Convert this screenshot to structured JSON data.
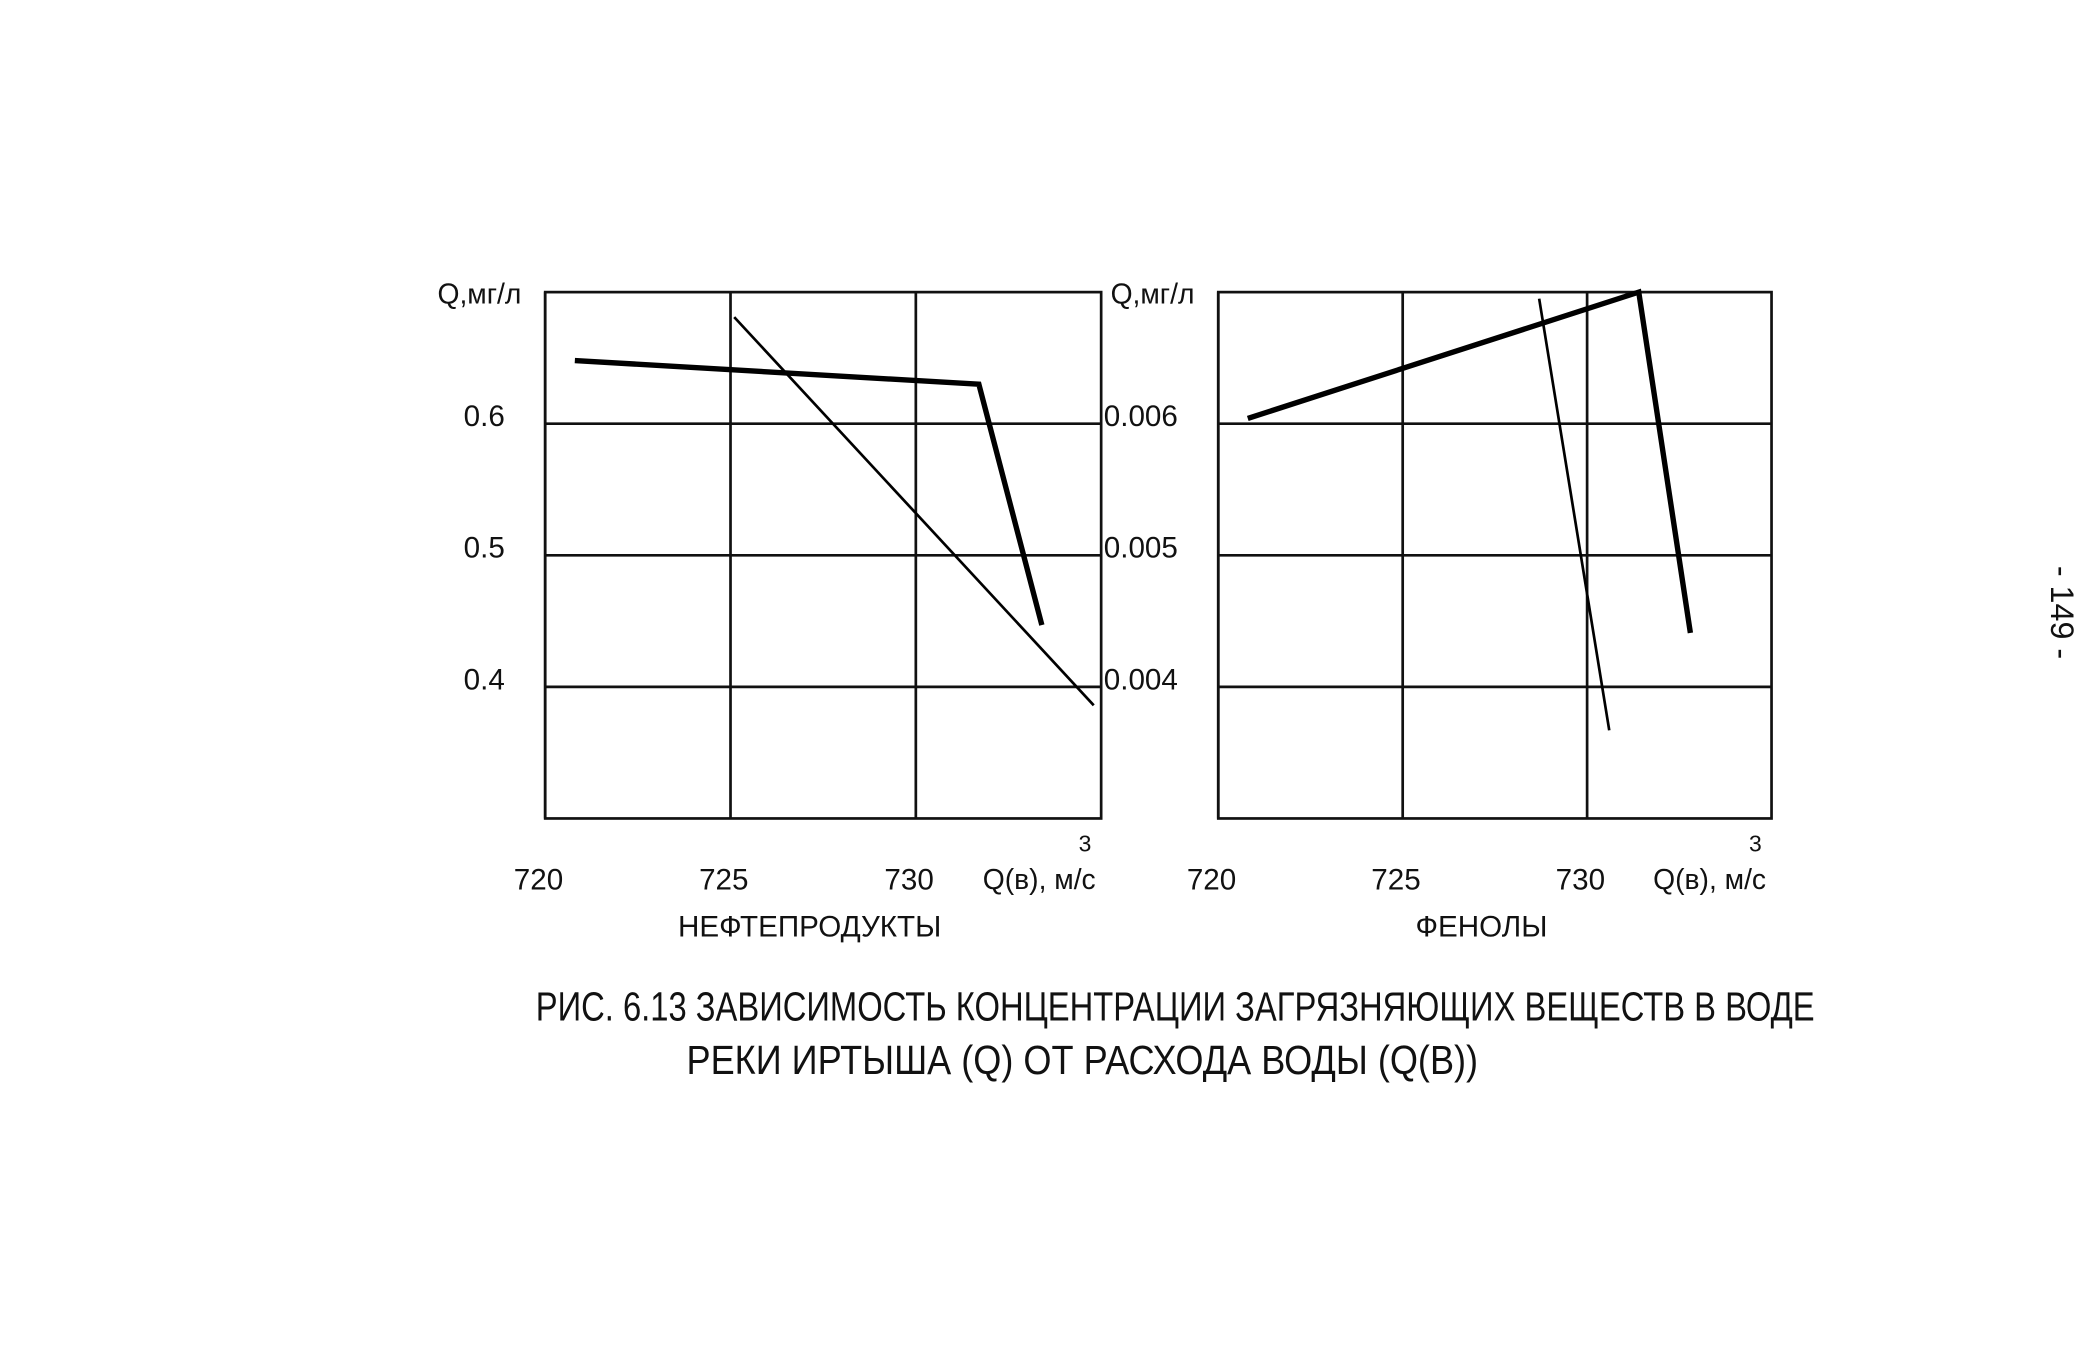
{
  "chart_data": [
    {
      "type": "line",
      "title": "НЕФТЕПРОДУКТЫ",
      "ylabel": "Q,мг/л",
      "xlabel": "Q(в), м/с",
      "xlabel_sup": "3",
      "xlim": [
        720,
        735
      ],
      "xticks": [
        720,
        725,
        730
      ],
      "ylim": [
        0.3,
        0.7
      ],
      "yticks": [
        0.6,
        0.5,
        0.4
      ],
      "grid": true,
      "series": [
        {
          "color": "#000000",
          "linewidth": 4,
          "x": [
            720.8,
            731.7,
            733.4
          ],
          "values": [
            0.648,
            0.63,
            0.447
          ]
        },
        {
          "color": "#000000",
          "linewidth": 2,
          "x": [
            725.1,
            734.8
          ],
          "values": [
            0.681,
            0.386
          ]
        }
      ]
    },
    {
      "type": "line",
      "title": "ФЕНОЛЫ",
      "ylabel": "Q,мг/л",
      "xlabel": "Q(в), м/с",
      "xlabel_sup": "3",
      "xlim": [
        720,
        735
      ],
      "xticks": [
        720,
        725,
        730
      ],
      "ylim": [
        0.003,
        0.007
      ],
      "yticks": [
        0.006,
        0.005,
        0.004
      ],
      "grid": true,
      "series": [
        {
          "color": "#000000",
          "linewidth": 4,
          "x": [
            720.8,
            731.4,
            732.8
          ],
          "values": [
            0.00604,
            0.007,
            0.00441
          ]
        },
        {
          "color": "#000000",
          "linewidth": 2,
          "x": [
            728.7,
            730.6
          ],
          "values": [
            0.00695,
            0.00367
          ]
        }
      ]
    }
  ],
  "caption": {
    "line1": "РИС. 6.13 ЗАВИСИМОСТЬ КОНЦЕНТРАЦИИ ЗАГРЯЗНЯЮЩИХ ВЕЩЕСТВ В ВОДЕ",
    "line2": "РЕКИ ИРТЫША (Q) ОТ РАСХОДА ВОДЫ (Q(В))"
  },
  "page_number": "- 149 -"
}
